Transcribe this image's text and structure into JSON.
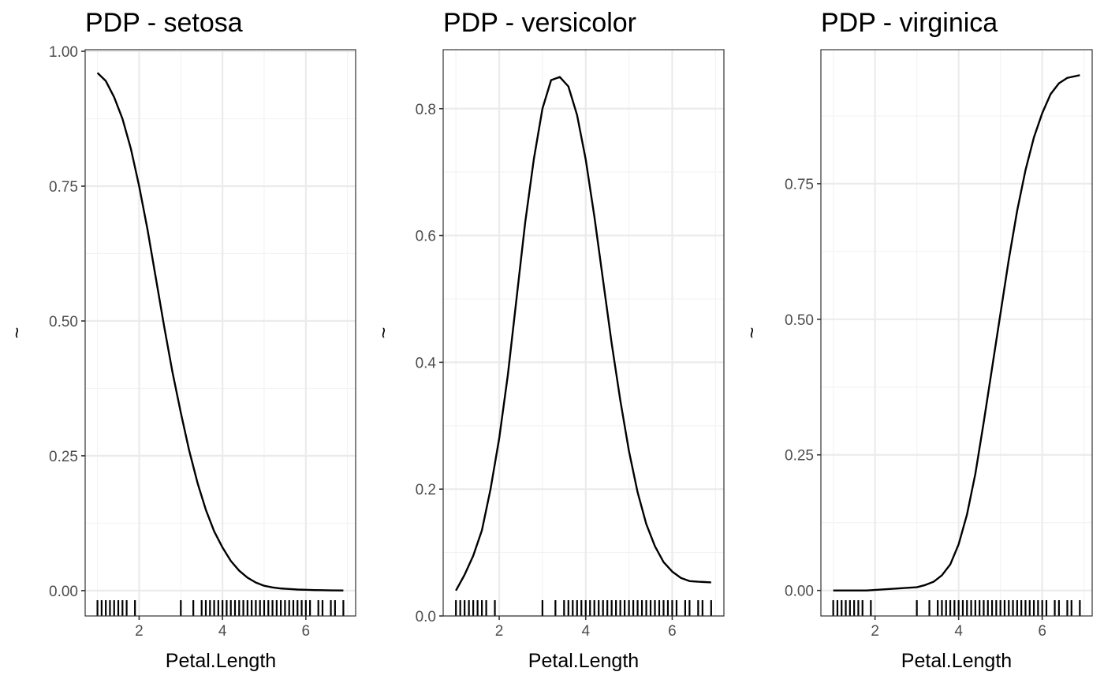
{
  "chart_data": [
    {
      "type": "line",
      "title": "PDP - setosa",
      "xlabel": "Petal.Length",
      "ylabel": "~",
      "xlim": [
        0.705,
        7.195
      ],
      "ylim": [
        -0.047,
        1.003
      ],
      "x_ticks": [
        2,
        4,
        6
      ],
      "x_tick_labels": [
        "2",
        "4",
        "6"
      ],
      "y_ticks": [
        0,
        0.25,
        0.5,
        0.75,
        1.0
      ],
      "y_tick_labels": [
        "0.00",
        "0.25",
        "0.50",
        "0.75",
        "1.00"
      ],
      "grid": true,
      "x": [
        1.0,
        1.2,
        1.4,
        1.6,
        1.8,
        2.0,
        2.2,
        2.4,
        2.6,
        2.8,
        3.0,
        3.2,
        3.4,
        3.6,
        3.8,
        4.0,
        4.2,
        4.4,
        4.6,
        4.8,
        5.0,
        5.2,
        5.4,
        5.6,
        5.8,
        6.0,
        6.2,
        6.4,
        6.6,
        6.9
      ],
      "y": [
        0.96,
        0.945,
        0.915,
        0.875,
        0.82,
        0.75,
        0.67,
        0.58,
        0.49,
        0.405,
        0.33,
        0.26,
        0.2,
        0.15,
        0.11,
        0.08,
        0.055,
        0.037,
        0.024,
        0.015,
        0.009,
        0.006,
        0.004,
        0.003,
        0.002,
        0.0015,
        0.001,
        0.0008,
        0.0005,
        0.0003
      ],
      "rug": [
        1.0,
        1.1,
        1.2,
        1.3,
        1.4,
        1.5,
        1.6,
        1.7,
        1.9,
        3.0,
        3.3,
        3.5,
        3.6,
        3.7,
        3.8,
        3.9,
        4.0,
        4.1,
        4.2,
        4.3,
        4.4,
        4.5,
        4.6,
        4.7,
        4.8,
        4.9,
        5.0,
        5.1,
        5.2,
        5.3,
        5.4,
        5.5,
        5.6,
        5.7,
        5.8,
        5.9,
        6.0,
        6.1,
        6.3,
        6.4,
        6.6,
        6.7,
        6.9
      ]
    },
    {
      "type": "line",
      "title": "PDP - versicolor",
      "xlabel": "Petal.Length",
      "ylabel": "~",
      "xlim": [
        0.705,
        7.195
      ],
      "ylim": [
        0.0,
        0.893
      ],
      "x_ticks": [
        2,
        4,
        6
      ],
      "x_tick_labels": [
        "2",
        "4",
        "6"
      ],
      "y_ticks": [
        0.0,
        0.2,
        0.4,
        0.6,
        0.8
      ],
      "y_tick_labels": [
        "0.0",
        "0.2",
        "0.4",
        "0.6",
        "0.8"
      ],
      "grid": true,
      "x": [
        1.0,
        1.2,
        1.4,
        1.6,
        1.8,
        2.0,
        2.2,
        2.4,
        2.6,
        2.8,
        3.0,
        3.2,
        3.4,
        3.6,
        3.8,
        4.0,
        4.2,
        4.4,
        4.6,
        4.8,
        5.0,
        5.2,
        5.4,
        5.6,
        5.8,
        6.0,
        6.2,
        6.4,
        6.6,
        6.9
      ],
      "y": [
        0.04,
        0.065,
        0.095,
        0.135,
        0.2,
        0.28,
        0.38,
        0.5,
        0.62,
        0.72,
        0.8,
        0.845,
        0.85,
        0.835,
        0.79,
        0.72,
        0.63,
        0.53,
        0.43,
        0.34,
        0.26,
        0.195,
        0.145,
        0.11,
        0.085,
        0.07,
        0.06,
        0.055,
        0.054,
        0.053
      ],
      "rug": [
        1.0,
        1.1,
        1.2,
        1.3,
        1.4,
        1.5,
        1.6,
        1.7,
        1.9,
        3.0,
        3.3,
        3.5,
        3.6,
        3.7,
        3.8,
        3.9,
        4.0,
        4.1,
        4.2,
        4.3,
        4.4,
        4.5,
        4.6,
        4.7,
        4.8,
        4.9,
        5.0,
        5.1,
        5.2,
        5.3,
        5.4,
        5.5,
        5.6,
        5.7,
        5.8,
        5.9,
        6.0,
        6.1,
        6.3,
        6.4,
        6.6,
        6.7,
        6.9
      ]
    },
    {
      "type": "line",
      "title": "PDP - virginica",
      "xlabel": "Petal.Length",
      "ylabel": "~",
      "xlim": [
        0.705,
        7.195
      ],
      "ylim": [
        -0.047,
        0.997
      ],
      "x_ticks": [
        2,
        4,
        6
      ],
      "x_tick_labels": [
        "2",
        "4",
        "6"
      ],
      "y_ticks": [
        0.0,
        0.25,
        0.5,
        0.75
      ],
      "y_tick_labels": [
        "0.00",
        "0.25",
        "0.50",
        "0.75"
      ],
      "grid": true,
      "x": [
        1.0,
        1.4,
        1.8,
        2.2,
        2.6,
        3.0,
        3.2,
        3.4,
        3.6,
        3.8,
        4.0,
        4.2,
        4.4,
        4.6,
        4.8,
        5.0,
        5.2,
        5.4,
        5.6,
        5.8,
        6.0,
        6.2,
        6.4,
        6.6,
        6.9
      ],
      "y": [
        0.0,
        0.0,
        0.0,
        0.002,
        0.004,
        0.006,
        0.01,
        0.016,
        0.028,
        0.048,
        0.085,
        0.14,
        0.215,
        0.31,
        0.41,
        0.51,
        0.61,
        0.7,
        0.775,
        0.835,
        0.88,
        0.915,
        0.935,
        0.945,
        0.95
      ],
      "rug": [
        1.0,
        1.1,
        1.2,
        1.3,
        1.4,
        1.5,
        1.6,
        1.7,
        1.9,
        3.0,
        3.3,
        3.5,
        3.6,
        3.7,
        3.8,
        3.9,
        4.0,
        4.1,
        4.2,
        4.3,
        4.4,
        4.5,
        4.6,
        4.7,
        4.8,
        4.9,
        5.0,
        5.1,
        5.2,
        5.3,
        5.4,
        5.5,
        5.6,
        5.7,
        5.8,
        5.9,
        6.0,
        6.1,
        6.3,
        6.4,
        6.6,
        6.7,
        6.9
      ]
    }
  ]
}
